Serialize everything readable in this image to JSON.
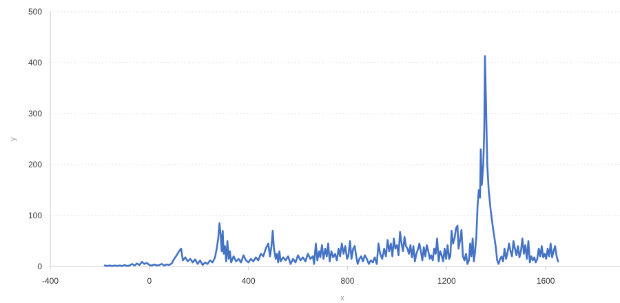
{
  "chart_data": {
    "type": "line",
    "xlabel": "x",
    "ylabel": "y",
    "xlim": [
      -400,
      1900
    ],
    "ylim": [
      0,
      500
    ],
    "xticks": [
      -400,
      0,
      400,
      800,
      1200,
      1600
    ],
    "yticks": [
      0,
      100,
      200,
      300,
      400,
      500
    ],
    "grid": "horizontal dotted",
    "legend": "none",
    "series": [
      {
        "color": "#4472c4",
        "points": [
          [
            -180,
            2
          ],
          [
            -170,
            1
          ],
          [
            -160,
            2
          ],
          [
            -150,
            1
          ],
          [
            -140,
            2
          ],
          [
            -130,
            1
          ],
          [
            -120,
            2
          ],
          [
            -110,
            1
          ],
          [
            -100,
            3
          ],
          [
            -90,
            1
          ],
          [
            -80,
            2
          ],
          [
            -70,
            5
          ],
          [
            -60,
            2
          ],
          [
            -50,
            6
          ],
          [
            -40,
            3
          ],
          [
            -30,
            9
          ],
          [
            -20,
            5
          ],
          [
            -10,
            7
          ],
          [
            0,
            3
          ],
          [
            10,
            2
          ],
          [
            20,
            4
          ],
          [
            30,
            2
          ],
          [
            40,
            3
          ],
          [
            50,
            5
          ],
          [
            60,
            2
          ],
          [
            70,
            4
          ],
          [
            80,
            3
          ],
          [
            90,
            6
          ],
          [
            100,
            15
          ],
          [
            110,
            22
          ],
          [
            120,
            30
          ],
          [
            128,
            35
          ],
          [
            135,
            12
          ],
          [
            145,
            18
          ],
          [
            155,
            10
          ],
          [
            165,
            15
          ],
          [
            175,
            8
          ],
          [
            185,
            14
          ],
          [
            195,
            5
          ],
          [
            205,
            12
          ],
          [
            215,
            3
          ],
          [
            225,
            8
          ],
          [
            235,
            5
          ],
          [
            245,
            12
          ],
          [
            255,
            8
          ],
          [
            265,
            18
          ],
          [
            272,
            35
          ],
          [
            278,
            55
          ],
          [
            283,
            85
          ],
          [
            288,
            60
          ],
          [
            292,
            30
          ],
          [
            296,
            70
          ],
          [
            300,
            25
          ],
          [
            305,
            40
          ],
          [
            310,
            10
          ],
          [
            315,
            50
          ],
          [
            320,
            15
          ],
          [
            325,
            30
          ],
          [
            330,
            8
          ],
          [
            340,
            20
          ],
          [
            350,
            10
          ],
          [
            360,
            15
          ],
          [
            370,
            8
          ],
          [
            380,
            22
          ],
          [
            390,
            12
          ],
          [
            400,
            8
          ],
          [
            410,
            15
          ],
          [
            420,
            10
          ],
          [
            430,
            18
          ],
          [
            440,
            12
          ],
          [
            450,
            25
          ],
          [
            460,
            20
          ],
          [
            470,
            35
          ],
          [
            480,
            45
          ],
          [
            487,
            20
          ],
          [
            493,
            40
          ],
          [
            498,
            70
          ],
          [
            503,
            35
          ],
          [
            510,
            15
          ],
          [
            515,
            25
          ],
          [
            520,
            8
          ],
          [
            525,
            30
          ],
          [
            530,
            10
          ],
          [
            540,
            18
          ],
          [
            550,
            12
          ],
          [
            560,
            20
          ],
          [
            570,
            5
          ],
          [
            580,
            15
          ],
          [
            590,
            8
          ],
          [
            600,
            22
          ],
          [
            610,
            12
          ],
          [
            620,
            18
          ],
          [
            630,
            10
          ],
          [
            640,
            25
          ],
          [
            650,
            15
          ],
          [
            660,
            20
          ],
          [
            665,
            5
          ],
          [
            672,
            45
          ],
          [
            678,
            12
          ],
          [
            685,
            30
          ],
          [
            690,
            18
          ],
          [
            697,
            42
          ],
          [
            703,
            15
          ],
          [
            710,
            35
          ],
          [
            716,
            20
          ],
          [
            722,
            45
          ],
          [
            728,
            10
          ],
          [
            735,
            30
          ],
          [
            742,
            18
          ],
          [
            750,
            25
          ],
          [
            757,
            12
          ],
          [
            764,
            35
          ],
          [
            770,
            20
          ],
          [
            777,
            45
          ],
          [
            784,
            25
          ],
          [
            791,
            40
          ],
          [
            798,
            15
          ],
          [
            803,
            20
          ],
          [
            810,
            50
          ],
          [
            816,
            15
          ],
          [
            823,
            35
          ],
          [
            829,
            40
          ],
          [
            835,
            20
          ],
          [
            841,
            5
          ],
          [
            848,
            15
          ],
          [
            855,
            20
          ],
          [
            862,
            10
          ],
          [
            870,
            22
          ],
          [
            878,
            15
          ],
          [
            886,
            5
          ],
          [
            894,
            12
          ],
          [
            902,
            8
          ],
          [
            910,
            18
          ],
          [
            918,
            5
          ],
          [
            925,
            45
          ],
          [
            932,
            25
          ],
          [
            940,
            15
          ],
          [
            948,
            35
          ],
          [
            955,
            20
          ],
          [
            962,
            52
          ],
          [
            968,
            30
          ],
          [
            975,
            45
          ],
          [
            981,
            20
          ],
          [
            987,
            55
          ],
          [
            993,
            35
          ],
          [
            1000,
            42
          ],
          [
            1006,
            22
          ],
          [
            1012,
            68
          ],
          [
            1018,
            45
          ],
          [
            1024,
            30
          ],
          [
            1030,
            58
          ],
          [
            1036,
            40
          ],
          [
            1042,
            35
          ],
          [
            1048,
            25
          ],
          [
            1054,
            42
          ],
          [
            1060,
            18
          ],
          [
            1066,
            40
          ],
          [
            1072,
            10
          ],
          [
            1078,
            25
          ],
          [
            1085,
            35
          ],
          [
            1090,
            45
          ],
          [
            1096,
            30
          ],
          [
            1102,
            12
          ],
          [
            1108,
            38
          ],
          [
            1114,
            20
          ],
          [
            1120,
            42
          ],
          [
            1126,
            30
          ],
          [
            1132,
            15
          ],
          [
            1138,
            22
          ],
          [
            1144,
            12
          ],
          [
            1150,
            35
          ],
          [
            1156,
            25
          ],
          [
            1162,
            55
          ],
          [
            1168,
            10
          ],
          [
            1174,
            30
          ],
          [
            1180,
            22
          ],
          [
            1186,
            10
          ],
          [
            1192,
            35
          ],
          [
            1198,
            15
          ],
          [
            1204,
            42
          ],
          [
            1210,
            15
          ],
          [
            1215,
            20
          ],
          [
            1220,
            70
          ],
          [
            1226,
            45
          ],
          [
            1232,
            55
          ],
          [
            1238,
            75
          ],
          [
            1244,
            80
          ],
          [
            1248,
            35
          ],
          [
            1254,
            50
          ],
          [
            1260,
            72
          ],
          [
            1266,
            20
          ],
          [
            1272,
            12
          ],
          [
            1278,
            25
          ],
          [
            1284,
            5
          ],
          [
            1290,
            12
          ],
          [
            1295,
            45
          ],
          [
            1300,
            20
          ],
          [
            1305,
            55
          ],
          [
            1310,
            10
          ],
          [
            1315,
            30
          ],
          [
            1320,
            60
          ],
          [
            1325,
            120
          ],
          [
            1330,
            150
          ],
          [
            1335,
            135
          ],
          [
            1338,
            230
          ],
          [
            1342,
            160
          ],
          [
            1348,
            200
          ],
          [
            1352,
            270
          ],
          [
            1355,
            413
          ],
          [
            1359,
            320
          ],
          [
            1364,
            200
          ],
          [
            1370,
            150
          ],
          [
            1378,
            110
          ],
          [
            1386,
            80
          ],
          [
            1392,
            60
          ],
          [
            1398,
            40
          ],
          [
            1404,
            12
          ],
          [
            1410,
            5
          ],
          [
            1416,
            15
          ],
          [
            1422,
            20
          ],
          [
            1428,
            10
          ],
          [
            1434,
            35
          ],
          [
            1440,
            15
          ],
          [
            1446,
            28
          ],
          [
            1452,
            45
          ],
          [
            1458,
            30
          ],
          [
            1464,
            20
          ],
          [
            1470,
            50
          ],
          [
            1476,
            35
          ],
          [
            1482,
            22
          ],
          [
            1488,
            40
          ],
          [
            1494,
            18
          ],
          [
            1500,
            30
          ],
          [
            1506,
            55
          ],
          [
            1512,
            25
          ],
          [
            1518,
            42
          ],
          [
            1524,
            15
          ],
          [
            1530,
            50
          ],
          [
            1536,
            8
          ],
          [
            1542,
            20
          ],
          [
            1548,
            12
          ],
          [
            1554,
            18
          ],
          [
            1560,
            8
          ],
          [
            1566,
            15
          ],
          [
            1572,
            35
          ],
          [
            1578,
            20
          ],
          [
            1584,
            40
          ],
          [
            1590,
            18
          ],
          [
            1596,
            25
          ],
          [
            1602,
            15
          ],
          [
            1608,
            35
          ],
          [
            1614,
            20
          ],
          [
            1620,
            45
          ],
          [
            1626,
            18
          ],
          [
            1632,
            30
          ],
          [
            1638,
            40
          ],
          [
            1644,
            20
          ],
          [
            1650,
            10
          ]
        ]
      }
    ]
  }
}
